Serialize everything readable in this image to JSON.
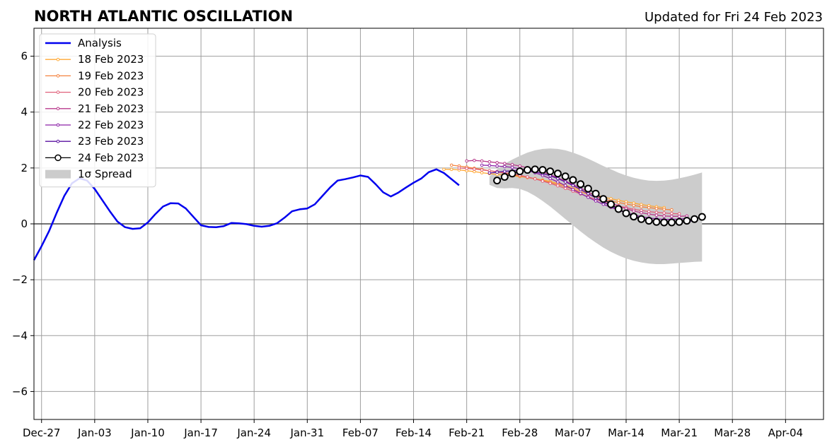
{
  "chart_data": {
    "type": "line",
    "title": "NORTH ATLANTIC OSCILLATION",
    "subtitle": "Updated for Fri 24 Feb 2023",
    "xlabel": "",
    "ylabel": "",
    "xlim": [
      "2022-12-26",
      "2023-04-09"
    ],
    "ylim": [
      -7,
      7
    ],
    "grid": true,
    "legend_position": "top-left",
    "x_ticks": [
      "Dec-27",
      "Jan-03",
      "Jan-10",
      "Jan-17",
      "Jan-24",
      "Jan-31",
      "Feb-07",
      "Feb-14",
      "Feb-21",
      "Feb-28",
      "Mar-07",
      "Mar-14",
      "Mar-21",
      "Mar-28",
      "Apr-04"
    ],
    "y_ticks": [
      -6,
      -4,
      -2,
      0,
      2,
      4,
      6
    ],
    "y_tick_labels": [
      "−6",
      "−4",
      "−2",
      "0",
      "2",
      "4",
      "6"
    ],
    "series": [
      {
        "name": "Analysis",
        "color": "#0000ee",
        "start": "2022-12-26",
        "values": [
          -1.3,
          -0.8,
          -0.25,
          0.4,
          1.0,
          1.45,
          1.63,
          1.55,
          1.25,
          0.85,
          0.45,
          0.08,
          -0.12,
          -0.18,
          -0.16,
          0.05,
          0.35,
          0.62,
          0.74,
          0.73,
          0.55,
          0.25,
          -0.05,
          -0.11,
          -0.12,
          -0.08,
          0.03,
          0.02,
          -0.01,
          -0.07,
          -0.1,
          -0.07,
          0.02,
          0.22,
          0.45,
          0.52,
          0.55,
          0.7,
          1.0,
          1.3,
          1.55,
          1.6,
          1.66,
          1.73,
          1.68,
          1.42,
          1.13,
          0.98,
          1.12,
          1.3,
          1.47,
          1.62,
          1.85,
          1.95,
          1.82,
          1.6,
          1.38
        ]
      },
      {
        "name": "18 Feb 2023",
        "color": "#ffa834",
        "start": "2023-02-18",
        "values": [
          1.95,
          1.95,
          1.93,
          1.9,
          1.87,
          1.83,
          1.8,
          1.77,
          1.75,
          1.72,
          1.69,
          1.66,
          1.62,
          1.57,
          1.52,
          1.45,
          1.38,
          1.3,
          1.21,
          1.12,
          1.03,
          0.96,
          0.9,
          0.84,
          0.79,
          0.74,
          0.69,
          0.65,
          0.61,
          0.58
        ]
      },
      {
        "name": "19 Feb 2023",
        "color": "#f5823f",
        "start": "2023-02-19",
        "values": [
          2.1,
          2.07,
          2.03,
          1.99,
          1.95,
          1.9,
          1.86,
          1.81,
          1.76,
          1.71,
          1.66,
          1.61,
          1.55,
          1.48,
          1.41,
          1.33,
          1.24,
          1.15,
          1.06,
          0.97,
          0.89,
          0.82,
          0.76,
          0.71,
          0.66,
          0.61,
          0.58,
          0.55,
          0.52,
          0.5
        ]
      },
      {
        "name": "20 Feb 2023",
        "color": "#e0607a",
        "start": "2023-02-20",
        "values": [
          2.0,
          1.98,
          1.96,
          1.93,
          1.9,
          1.87,
          1.83,
          1.79,
          1.74,
          1.68,
          1.61,
          1.53,
          1.45,
          1.36,
          1.27,
          1.17,
          1.07,
          0.97,
          0.88,
          0.79,
          0.71,
          0.64,
          0.58,
          0.52,
          0.48,
          0.44,
          0.41,
          0.39,
          0.37,
          0.36
        ]
      },
      {
        "name": "21 Feb 2023",
        "color": "#b83a8c",
        "start": "2023-02-21",
        "values": [
          2.25,
          2.27,
          2.25,
          2.22,
          2.19,
          2.16,
          2.12,
          2.07,
          2.01,
          1.94,
          1.86,
          1.76,
          1.65,
          1.53,
          1.41,
          1.28,
          1.14,
          1.0,
          0.87,
          0.75,
          0.64,
          0.54,
          0.46,
          0.4,
          0.35,
          0.31,
          0.28,
          0.27,
          0.27,
          0.28
        ]
      },
      {
        "name": "22 Feb 2023",
        "color": "#8c22a8",
        "start": "2023-02-23",
        "values": [
          2.1,
          2.09,
          2.07,
          2.05,
          2.02,
          1.97,
          1.91,
          1.83,
          1.73,
          1.62,
          1.5,
          1.37,
          1.23,
          1.09,
          0.95,
          0.82,
          0.7,
          0.59,
          0.49,
          0.4,
          0.32,
          0.26,
          0.21,
          0.18,
          0.16,
          0.16,
          0.17,
          0.2
        ]
      },
      {
        "name": "23 Feb 2023",
        "color": "#5a10a0",
        "start": "2023-02-24",
        "values": [
          1.82,
          1.85,
          1.88,
          1.9,
          1.92,
          1.9,
          1.86,
          1.8,
          1.72,
          1.62,
          1.5,
          1.37,
          1.23,
          1.08,
          0.93,
          0.78,
          0.64,
          0.51,
          0.39,
          0.29,
          0.2,
          0.13,
          0.08,
          0.05,
          0.04,
          0.05,
          0.08,
          0.12
        ]
      },
      {
        "name": "24 Feb 2023",
        "color": "#000000",
        "marker": "open-circle",
        "start": "2023-02-25",
        "values": [
          1.55,
          1.68,
          1.8,
          1.88,
          1.93,
          1.95,
          1.93,
          1.88,
          1.8,
          1.7,
          1.57,
          1.42,
          1.26,
          1.08,
          0.89,
          0.7,
          0.53,
          0.38,
          0.26,
          0.17,
          0.11,
          0.07,
          0.05,
          0.05,
          0.07,
          0.11,
          0.17,
          0.25
        ]
      }
    ],
    "spread": {
      "name": "1σ Spread",
      "color": "#cccccc",
      "start": "2023-02-24",
      "upper": [
        1.7,
        1.95,
        2.15,
        2.3,
        2.43,
        2.55,
        2.63,
        2.68,
        2.7,
        2.68,
        2.63,
        2.55,
        2.45,
        2.33,
        2.2,
        2.07,
        1.95,
        1.83,
        1.73,
        1.65,
        1.59,
        1.55,
        1.54,
        1.55,
        1.58,
        1.63,
        1.69,
        1.76,
        1.84
      ],
      "lower": [
        1.4,
        1.28,
        1.27,
        1.28,
        1.25,
        1.15,
        1.0,
        0.82,
        0.62,
        0.4,
        0.17,
        -0.05,
        -0.27,
        -0.48,
        -0.67,
        -0.85,
        -1.0,
        -1.13,
        -1.24,
        -1.32,
        -1.38,
        -1.42,
        -1.44,
        -1.44,
        -1.42,
        -1.4,
        -1.38,
        -1.36,
        -1.35
      ]
    }
  }
}
